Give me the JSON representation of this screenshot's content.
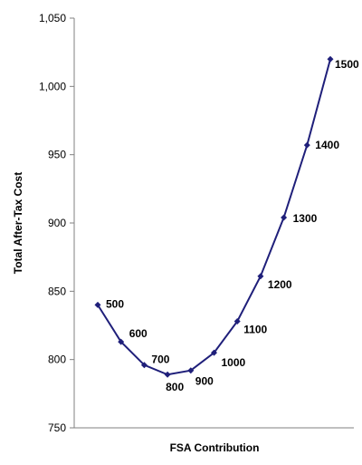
{
  "chart_data": {
    "type": "line",
    "title": "",
    "xlabel": "FSA Contribution",
    "ylabel": "Total After-Tax Cost",
    "ylim": [
      750,
      1050
    ],
    "y_ticks": [
      750,
      800,
      850,
      900,
      950,
      1000,
      1050
    ],
    "y_tick_labels": [
      "750",
      "800",
      "850",
      "900",
      "950",
      "1,000",
      "1,050"
    ],
    "grid": false,
    "legend": "none",
    "line_color": "#1f1f7a",
    "marker": "diamond",
    "series": [
      {
        "x": [
          500,
          600,
          700,
          800,
          900,
          1000,
          1100,
          1200,
          1300,
          1400,
          1500
        ],
        "values": [
          840,
          813,
          796,
          789,
          792,
          805,
          828,
          861,
          904,
          957,
          1020
        ]
      }
    ],
    "data_labels": [
      "500",
      "600",
      "700",
      "800",
      "900",
      "1000",
      "1100",
      "1200",
      "1300",
      "1400",
      "1500"
    ]
  }
}
